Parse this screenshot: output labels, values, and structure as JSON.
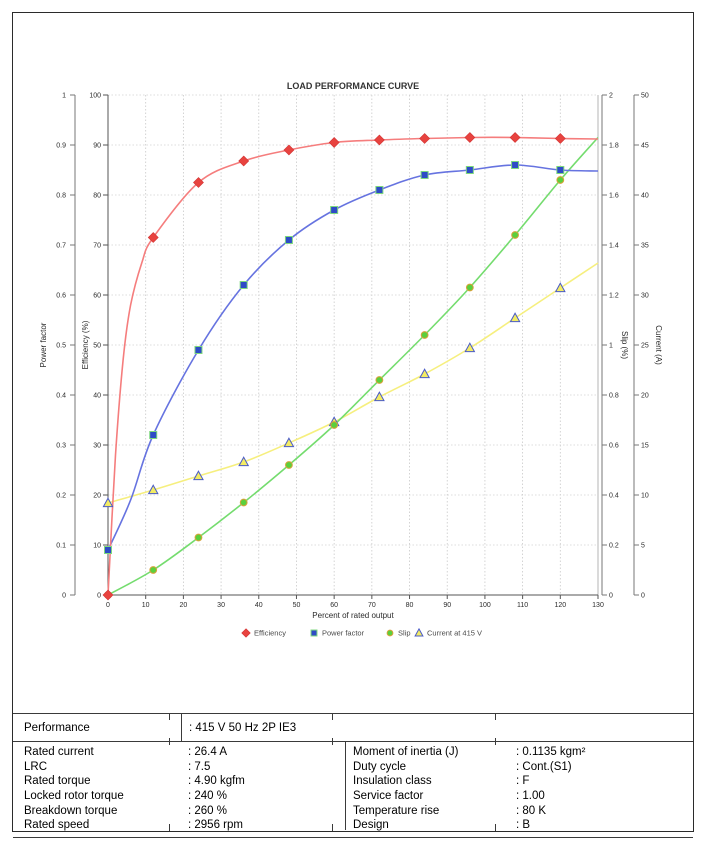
{
  "chart_data": {
    "type": "line",
    "title": "LOAD PERFORMANCE CURVE",
    "xlabel": "Percent of rated output",
    "x_range": [
      0,
      130
    ],
    "x_tick_step": 10,
    "grid": true,
    "legend_position": "bottom",
    "axes": {
      "power_factor": {
        "label": "Power factor",
        "range": [
          0,
          1
        ],
        "tick_step": 0.1,
        "side": "left"
      },
      "efficiency": {
        "label": "Efficiency (%)",
        "range": [
          0,
          100
        ],
        "tick_step": 10,
        "side": "left"
      },
      "slip": {
        "label": "Slip (%)",
        "range": [
          0,
          2
        ],
        "tick_step": 0.2,
        "side": "right"
      },
      "current": {
        "label": "Current (A)",
        "range": [
          0,
          50
        ],
        "tick_step": 5,
        "side": "right"
      }
    },
    "x": [
      0,
      12,
      24,
      36,
      48,
      60,
      72,
      84,
      96,
      108,
      120
    ],
    "series": [
      {
        "name": "Current at 415 V",
        "axis": "current",
        "marker": "triangle",
        "marker_fill": "#f3ec63",
        "marker_edge": "#4a5bc8",
        "line_color": "#f6ef7e",
        "values": [
          9.2,
          10.5,
          11.9,
          13.3,
          15.2,
          17.3,
          19.8,
          22.1,
          24.7,
          27.7,
          30.7
        ],
        "end": {
          "x": 130,
          "value": 33.2
        },
        "lead": []
      },
      {
        "name": "Slip",
        "axis": "slip",
        "marker": "circle",
        "marker_fill": "#5ad03c",
        "marker_edge": "#d9a13a",
        "line_color": "#74dc6e",
        "values": [
          0,
          0.1,
          0.23,
          0.37,
          0.52,
          0.68,
          0.86,
          1.04,
          1.23,
          1.44,
          1.66
        ],
        "end": {
          "x": 130,
          "value": 1.83
        },
        "lead": []
      },
      {
        "name": "Power factor",
        "axis": "power_factor",
        "marker": "square",
        "marker_fill": "#2e4bc6",
        "marker_edge": "#7ed87e",
        "line_color": "#6673e0",
        "values": [
          0.09,
          0.32,
          0.49,
          0.62,
          0.71,
          0.77,
          0.81,
          0.84,
          0.85,
          0.86,
          0.85
        ],
        "end": {
          "x": 130,
          "value": 0.848
        },
        "lead": [
          [
            6,
            0.19
          ]
        ]
      },
      {
        "name": "Efficiency",
        "axis": "efficiency",
        "marker": "diamond",
        "marker_fill": "#e8433f",
        "marker_edge": "#d23434",
        "line_color": "#f57d7d",
        "values": [
          0,
          71.5,
          82.5,
          86.8,
          89.0,
          90.5,
          91.0,
          91.3,
          91.5,
          91.5,
          91.3
        ],
        "end": {
          "x": 130,
          "value": 91.2
        },
        "lead": [
          [
            2,
            28
          ],
          [
            4,
            47
          ],
          [
            6,
            58
          ],
          [
            9,
            66.5
          ]
        ]
      }
    ],
    "legend_order": [
      "Efficiency",
      "Power factor",
      "Slip",
      "Current at 415 V"
    ]
  },
  "spec_table": {
    "header": {
      "label": "Performance",
      "value": ": 415 V 50 Hz 2P IE3"
    },
    "rows": [
      {
        "l1": "Rated current",
        "v1": ": 26.4 A",
        "l2": "Moment of inertia (J)",
        "v2": ": 0.1135 kgm²"
      },
      {
        "l1": "LRC",
        "v1": ": 7.5",
        "l2": "Duty cycle",
        "v2": ": Cont.(S1)"
      },
      {
        "l1": "Rated torque",
        "v1": ": 4.90 kgfm",
        "l2": "Insulation class",
        "v2": ": F"
      },
      {
        "l1": "Locked rotor torque",
        "v1": ": 240 %",
        "l2": "Service factor",
        "v2": ": 1.00"
      },
      {
        "l1": "Breakdown torque",
        "v1": ": 260 %",
        "l2": "Temperature rise",
        "v2": ": 80 K"
      },
      {
        "l1": "Rated speed",
        "v1": ": 2956 rpm",
        "l2": "Design",
        "v2": ": B"
      }
    ]
  }
}
